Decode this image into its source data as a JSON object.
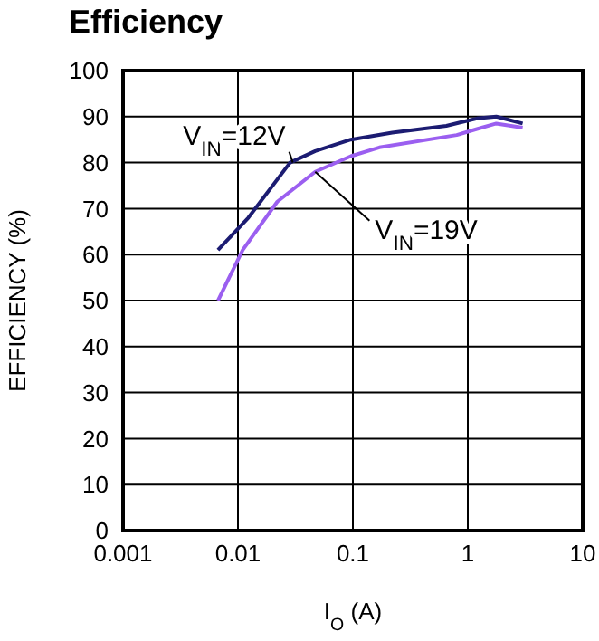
{
  "chart_data": {
    "type": "line",
    "title": "Efficiency",
    "xlabel": "I$_{O}$ (A)",
    "ylabel": "EFFICIENCY (%)",
    "log": "x",
    "grid": true,
    "xlim": [
      0.001,
      10
    ],
    "xticks": [
      0.001,
      0.01,
      0.1,
      1,
      10
    ],
    "ylim": [
      0,
      100
    ],
    "yticks": [
      0,
      10,
      20,
      30,
      40,
      50,
      60,
      70,
      80,
      90,
      100
    ],
    "annotations": [
      {
        "text": "V$_{IN}$=12V",
        "x": 0.03,
        "y": 80
      },
      {
        "text": "V$_{IN}$=19V",
        "x": 0.047,
        "y": 78
      }
    ],
    "series": [
      {
        "color": "#1c1c72",
        "x": [
          0.0067,
          0.0123,
          0.0284,
          0.047,
          0.096,
          0.22,
          0.65,
          1.2,
          1.77,
          3.0
        ],
        "values": [
          61,
          68,
          80,
          82.5,
          85,
          86.5,
          88,
          89.6,
          90,
          88.5
        ]
      },
      {
        "color": "#9b5ff0",
        "x": [
          0.0067,
          0.011,
          0.022,
          0.047,
          0.096,
          0.17,
          0.8,
          1.2,
          1.77,
          3.0
        ],
        "values": [
          50,
          61,
          71.5,
          78,
          81.4,
          83.3,
          86,
          87.3,
          88.5,
          87.6
        ]
      }
    ]
  }
}
